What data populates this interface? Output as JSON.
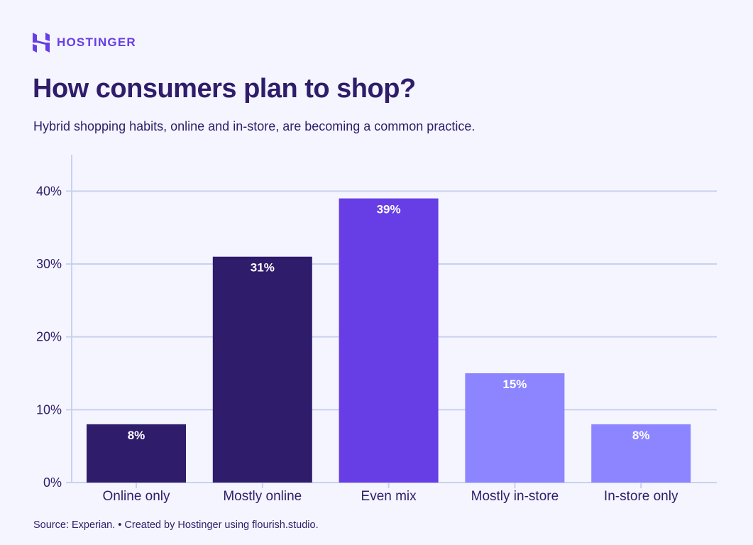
{
  "brand": {
    "name": "HOSTINGER",
    "logo_icon": "hostinger-h-logo",
    "color": "#673de6"
  },
  "header": {
    "title": "How consumers plan to shop?",
    "subtitle": "Hybrid shopping habits, online and in-store, are becoming a common practice."
  },
  "footer": {
    "source": "Source: Experian. • Created by Hostinger using flourish.studio."
  },
  "chart_data": {
    "type": "bar",
    "title": "How consumers plan to shop?",
    "subtitle": "Hybrid shopping habits, online and in-store, are becoming a common practice.",
    "xlabel": "",
    "ylabel": "",
    "categories": [
      "Online only",
      "Mostly online",
      "Even mix",
      "Mostly in-store",
      "In-store only"
    ],
    "values": [
      8,
      31,
      39,
      15,
      8
    ],
    "data_labels": [
      "8%",
      "31%",
      "39%",
      "15%",
      "8%"
    ],
    "colors": [
      "#2f1c6a",
      "#2f1c6a",
      "#673de6",
      "#8c85ff",
      "#8c85ff"
    ],
    "ylim": [
      0,
      45
    ],
    "yticks": [
      0,
      10,
      20,
      30,
      40
    ],
    "ytick_labels": [
      "0%",
      "10%",
      "20%",
      "30%",
      "40%"
    ],
    "grid": true,
    "legend": "none"
  }
}
